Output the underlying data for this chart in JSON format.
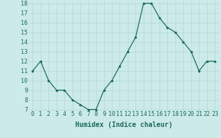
{
  "x": [
    0,
    1,
    2,
    3,
    4,
    5,
    6,
    7,
    8,
    9,
    10,
    11,
    12,
    13,
    14,
    15,
    16,
    17,
    18,
    19,
    20,
    21,
    22,
    23
  ],
  "y": [
    11,
    12,
    10,
    9,
    9,
    8,
    7.5,
    7,
    7,
    9,
    10,
    11.5,
    13,
    14.5,
    18,
    18,
    16.5,
    15.5,
    15,
    14,
    13,
    11,
    12,
    12
  ],
  "line_color": "#1a6b5a",
  "marker_color": "#1a6b5a",
  "bg_color": "#cceae8",
  "grid_color": "#b0d8d4",
  "xlabel": "Humidex (Indice chaleur)",
  "ylim": [
    7,
    18
  ],
  "xlim": [
    -0.5,
    23.5
  ],
  "yticks": [
    7,
    8,
    9,
    10,
    11,
    12,
    13,
    14,
    15,
    16,
    17,
    18
  ],
  "xticks": [
    0,
    1,
    2,
    3,
    4,
    5,
    6,
    7,
    8,
    9,
    10,
    11,
    12,
    13,
    14,
    15,
    16,
    17,
    18,
    19,
    20,
    21,
    22,
    23
  ],
  "xlabel_fontsize": 7,
  "tick_fontsize": 6,
  "linewidth": 0.9,
  "markersize": 2.0
}
